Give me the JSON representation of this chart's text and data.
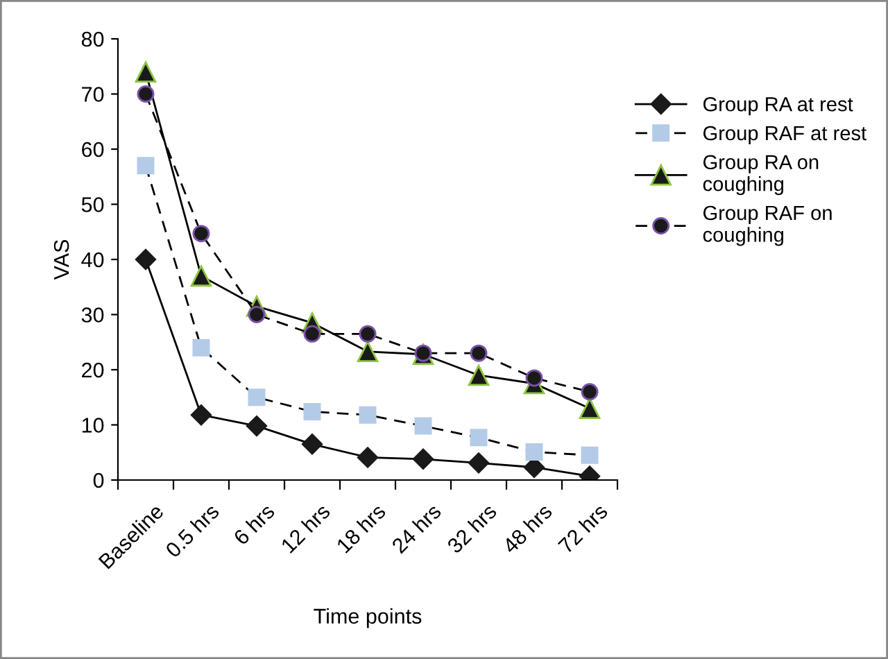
{
  "chart_data": {
    "type": "line",
    "xlabel": "Time points",
    "ylabel": "VAS",
    "categories": [
      "Baseline",
      "0.5 hrs",
      "6 hrs",
      "12 hrs",
      "18 hrs",
      "24 hrs",
      "32 hrs",
      "48 hrs",
      "72 hrs"
    ],
    "ylim": [
      0,
      80
    ],
    "yticks": [
      0,
      10,
      20,
      30,
      40,
      50,
      60,
      70,
      80
    ],
    "grid": false,
    "legend": "right",
    "series": [
      {
        "name": "Group RA at rest",
        "color": "#1a1a1a",
        "marker": "diamond",
        "line_style": "solid",
        "values": [
          40,
          11.8,
          9.8,
          6.5,
          4.1,
          3.8,
          3.1,
          2.3,
          0.7
        ]
      },
      {
        "name": "Group RAF at rest",
        "color": "#b4cbe8",
        "marker": "square",
        "line_style": "dashed",
        "values": [
          57,
          24,
          15,
          12.4,
          11.8,
          9.8,
          7.7,
          5.1,
          4.5
        ]
      },
      {
        "name": "Group RA on coughing",
        "color": "#1a1a1a",
        "marker": "triangle",
        "line_style": "solid",
        "values": [
          74,
          37,
          31.5,
          28.5,
          23.3,
          22.8,
          19,
          17.5,
          13
        ]
      },
      {
        "name": "Group RAF on coughing",
        "color": "#1a1a1a",
        "marker": "circle",
        "line_style": "dashed",
        "values": [
          70,
          44.7,
          30,
          26.5,
          26.5,
          23,
          23,
          18.5,
          16
        ]
      }
    ]
  }
}
